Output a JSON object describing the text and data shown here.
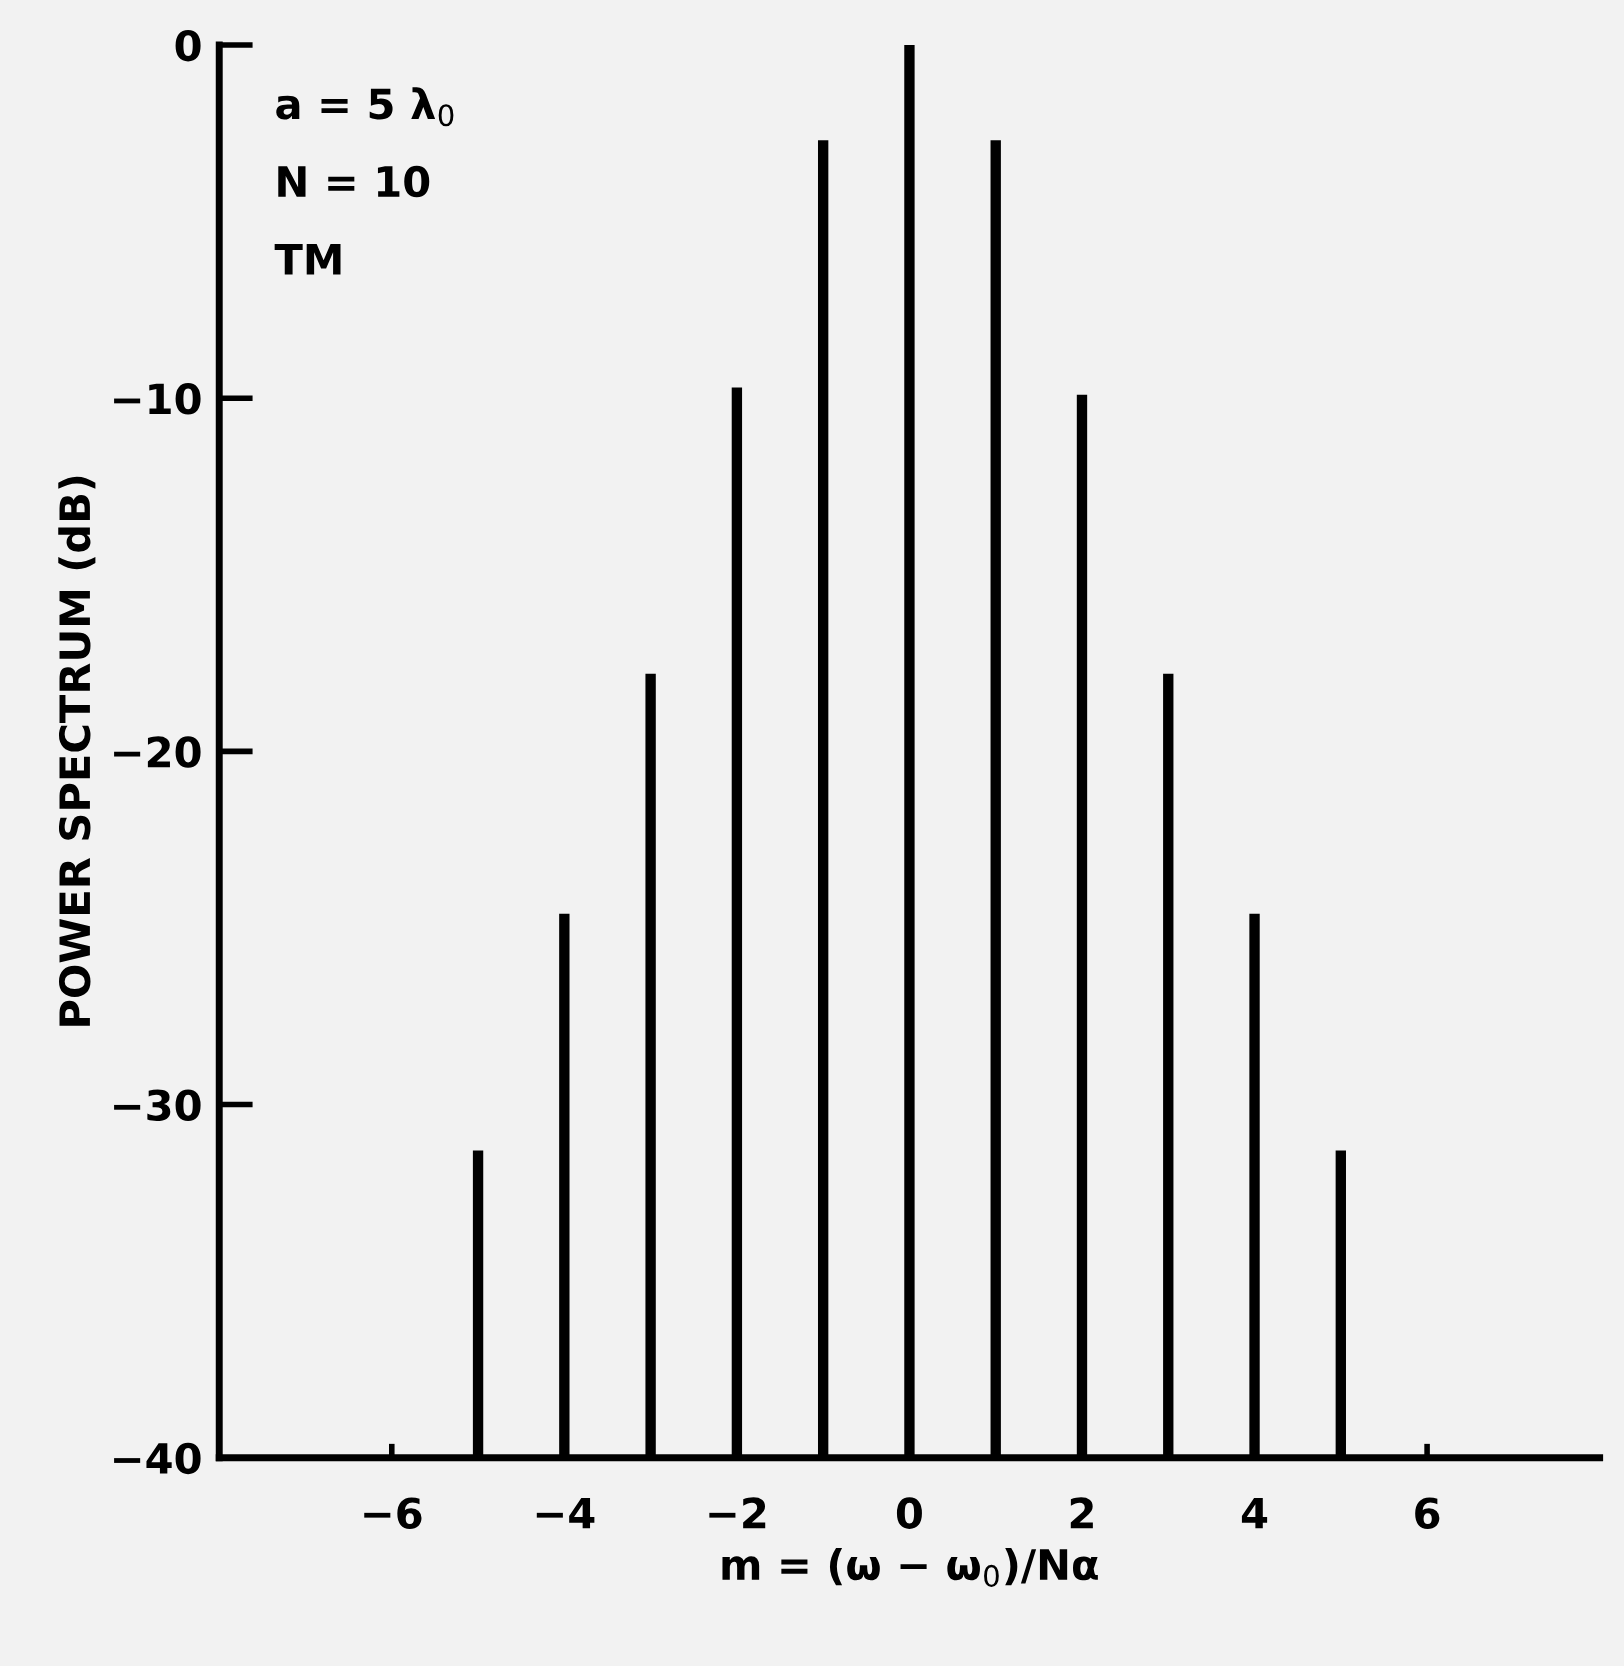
{
  "chart_data": {
    "type": "bar",
    "x": [
      -5,
      -4,
      -3,
      -2,
      -1,
      0,
      1,
      2,
      3,
      4,
      5
    ],
    "base": [
      -40,
      -40,
      -40,
      -40,
      -40,
      -40,
      -40,
      -40,
      -40,
      -40,
      -40
    ],
    "values": [
      8.7,
      15.4,
      22.2,
      30.3,
      37.3,
      40,
      37.3,
      30.1,
      22.2,
      15.4,
      8.7
    ],
    "color": "#000000",
    "xlabel": "m = (ω − ω$_{0}$)/Nα",
    "ylabel": "POWER SPECTRUM (dB)",
    "annotations": [
      "a = 5 λ$_{0}$",
      "N = 10",
      "TM"
    ],
    "xlim": [
      -8,
      8
    ],
    "xticks": [
      {
        "value": -6,
        "label": "−6"
      },
      {
        "value": -4,
        "label": "−4"
      },
      {
        "value": -2,
        "label": "−2"
      },
      0,
      2,
      4,
      6
    ],
    "ylim": [
      -40,
      0
    ],
    "yticks": [
      {
        "value": -40,
        "label": "−40"
      },
      {
        "value": -30,
        "label": "−30"
      },
      {
        "value": -20,
        "label": "−20"
      },
      {
        "value": -10,
        "label": "−10"
      },
      0
    ],
    "grid": false
  }
}
